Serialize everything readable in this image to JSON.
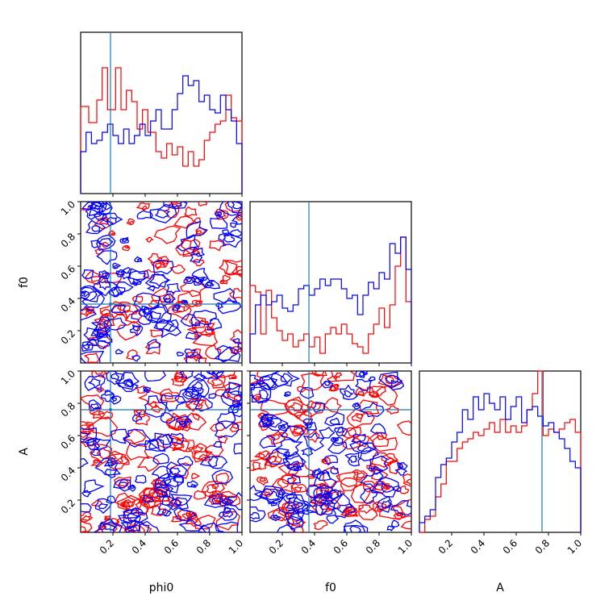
{
  "chart_data": {
    "type": "corner",
    "parameters": [
      "phi0",
      "f0",
      "A"
    ],
    "axis_range": [
      0,
      1
    ],
    "tick_labels": [
      "0.2",
      "0.4",
      "0.6",
      "0.8",
      "1.0"
    ],
    "tick_values": [
      0.2,
      0.4,
      0.6,
      0.8,
      1.0
    ],
    "truth": {
      "phi0": 0.185,
      "f0": 0.365,
      "A": 0.76
    },
    "colors": {
      "series_1": "#ff0000",
      "series_2": "#0000ff",
      "truth": "#1f77b4"
    },
    "histograms": {
      "phi0": {
        "series_1": [
          0.54,
          0.54,
          0.54,
          0.44,
          0.44,
          0.44,
          0.58,
          0.58,
          0.78,
          0.78,
          0.52,
          0.52,
          0.52,
          0.78,
          0.78,
          0.52,
          0.52,
          0.64,
          0.64,
          0.57,
          0.57,
          0.4,
          0.4,
          0.52,
          0.52,
          0.38,
          0.38,
          0.38,
          0.26,
          0.26,
          0.22,
          0.22,
          0.31,
          0.31,
          0.24,
          0.24,
          0.29,
          0.29,
          0.17,
          0.17,
          0.26,
          0.26,
          0.17,
          0.17,
          0.21,
          0.21,
          0.33,
          0.33,
          0.38,
          0.38,
          0.43,
          0.43,
          0.45,
          0.45,
          0.61,
          0.61,
          0.47,
          0.47,
          0.45,
          0.45
        ],
        "series_2": [
          0.26,
          0.26,
          0.38,
          0.38,
          0.31,
          0.31,
          0.33,
          0.33,
          0.38,
          0.38,
          0.43,
          0.43,
          0.36,
          0.36,
          0.31,
          0.31,
          0.4,
          0.4,
          0.31,
          0.31,
          0.36,
          0.36,
          0.43,
          0.43,
          0.36,
          0.36,
          0.45,
          0.45,
          0.52,
          0.52,
          0.4,
          0.4,
          0.4,
          0.4,
          0.52,
          0.52,
          0.62,
          0.62,
          0.73,
          0.73,
          0.67,
          0.67,
          0.7,
          0.7,
          0.57,
          0.57,
          0.61,
          0.61,
          0.52,
          0.52,
          0.5,
          0.5,
          0.61,
          0.61,
          0.52,
          0.52,
          0.45,
          0.45,
          0.31,
          0.31
        ]
      },
      "f0": {
        "series_1": [
          0.48,
          0.48,
          0.44,
          0.44,
          0.18,
          0.18,
          0.45,
          0.45,
          0.28,
          0.28,
          0.2,
          0.2,
          0.14,
          0.14,
          0.18,
          0.18,
          0.1,
          0.1,
          0.14,
          0.14,
          0.18,
          0.18,
          0.1,
          0.1,
          0.16,
          0.16,
          0.06,
          0.06,
          0.18,
          0.18,
          0.22,
          0.22,
          0.18,
          0.18,
          0.24,
          0.24,
          0.18,
          0.18,
          0.12,
          0.12,
          0.1,
          0.1,
          0.06,
          0.06,
          0.18,
          0.18,
          0.24,
          0.24,
          0.34,
          0.34,
          0.22,
          0.22,
          0.36,
          0.36,
          0.6,
          0.6,
          0.78,
          0.78,
          0.38,
          0.38
        ],
        "series_2": [
          0.18,
          0.18,
          0.36,
          0.36,
          0.42,
          0.42,
          0.36,
          0.36,
          0.38,
          0.38,
          0.42,
          0.42,
          0.34,
          0.34,
          0.32,
          0.32,
          0.36,
          0.36,
          0.46,
          0.46,
          0.48,
          0.48,
          0.42,
          0.42,
          0.46,
          0.46,
          0.52,
          0.52,
          0.48,
          0.48,
          0.52,
          0.52,
          0.52,
          0.52,
          0.46,
          0.46,
          0.4,
          0.4,
          0.42,
          0.42,
          0.3,
          0.3,
          0.42,
          0.42,
          0.5,
          0.5,
          0.46,
          0.46,
          0.56,
          0.56,
          0.52,
          0.52,
          0.74,
          0.74,
          0.68,
          0.68,
          0.78,
          0.78,
          0.58,
          0.58
        ]
      },
      "A": {
        "series_1": [
          0.0,
          0.0,
          0.08,
          0.08,
          0.1,
          0.1,
          0.22,
          0.22,
          0.3,
          0.3,
          0.44,
          0.44,
          0.44,
          0.44,
          0.52,
          0.52,
          0.56,
          0.56,
          0.58,
          0.58,
          0.62,
          0.62,
          0.6,
          0.6,
          0.64,
          0.64,
          0.68,
          0.68,
          0.62,
          0.62,
          0.7,
          0.7,
          0.62,
          0.62,
          0.66,
          0.66,
          0.62,
          0.62,
          0.66,
          0.66,
          0.76,
          0.76,
          0.86,
          0.86,
          1.0,
          1.0,
          0.6,
          0.6,
          0.64,
          0.64,
          0.62,
          0.62,
          0.64,
          0.64,
          0.68,
          0.68,
          0.7,
          0.7,
          0.62,
          0.62
        ],
        "series_2": [
          0.06,
          0.06,
          0.1,
          0.1,
          0.14,
          0.14,
          0.34,
          0.34,
          0.42,
          0.42,
          0.46,
          0.46,
          0.56,
          0.56,
          0.62,
          0.62,
          0.76,
          0.76,
          0.7,
          0.7,
          0.84,
          0.84,
          0.76,
          0.76,
          0.86,
          0.86,
          0.8,
          0.8,
          0.76,
          0.76,
          0.84,
          0.84,
          0.7,
          0.7,
          0.78,
          0.78,
          0.84,
          0.84,
          0.68,
          0.68,
          0.76,
          0.76,
          0.78,
          0.78,
          0.72,
          0.72,
          0.66,
          0.66,
          0.68,
          0.68,
          0.62,
          0.62,
          0.58,
          0.58,
          0.52,
          0.52,
          0.44,
          0.44,
          0.4,
          0.4
        ]
      }
    },
    "axis_labels": {
      "x": [
        "phi0",
        "f0",
        "A"
      ],
      "y": [
        "f0",
        "A"
      ]
    },
    "contour_panels": [
      "f0-vs-phi0",
      "A-vs-phi0",
      "A-vs-f0"
    ]
  }
}
